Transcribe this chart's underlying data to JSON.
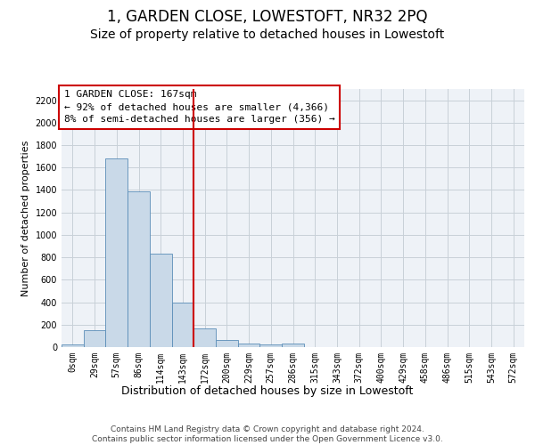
{
  "title": "1, GARDEN CLOSE, LOWESTOFT, NR32 2PQ",
  "subtitle": "Size of property relative to detached houses in Lowestoft",
  "xlabel": "Distribution of detached houses by size in Lowestoft",
  "ylabel": "Number of detached properties",
  "bar_labels": [
    "0sqm",
    "29sqm",
    "57sqm",
    "86sqm",
    "114sqm",
    "143sqm",
    "172sqm",
    "200sqm",
    "229sqm",
    "257sqm",
    "286sqm",
    "315sqm",
    "343sqm",
    "372sqm",
    "400sqm",
    "429sqm",
    "458sqm",
    "486sqm",
    "515sqm",
    "543sqm",
    "572sqm"
  ],
  "bar_values": [
    20,
    150,
    1680,
    1390,
    830,
    400,
    165,
    60,
    35,
    20,
    30,
    0,
    0,
    0,
    0,
    0,
    0,
    0,
    0,
    0,
    0
  ],
  "bar_color": "#c9d9e8",
  "bar_edge_color": "#5b8db8",
  "grid_color": "#c8d0d8",
  "background_color": "#eef2f7",
  "vline_x": 5.5,
  "vline_color": "#cc0000",
  "annotation_text": "1 GARDEN CLOSE: 167sqm\n← 92% of detached houses are smaller (4,366)\n8% of semi-detached houses are larger (356) →",
  "ylim": [
    0,
    2300
  ],
  "yticks": [
    0,
    200,
    400,
    600,
    800,
    1000,
    1200,
    1400,
    1600,
    1800,
    2000,
    2200
  ],
  "footer_text": "Contains HM Land Registry data © Crown copyright and database right 2024.\nContains public sector information licensed under the Open Government Licence v3.0.",
  "title_fontsize": 12,
  "subtitle_fontsize": 10,
  "xlabel_fontsize": 9,
  "ylabel_fontsize": 8,
  "tick_fontsize": 7,
  "annotation_fontsize": 8,
  "footer_fontsize": 6.5
}
